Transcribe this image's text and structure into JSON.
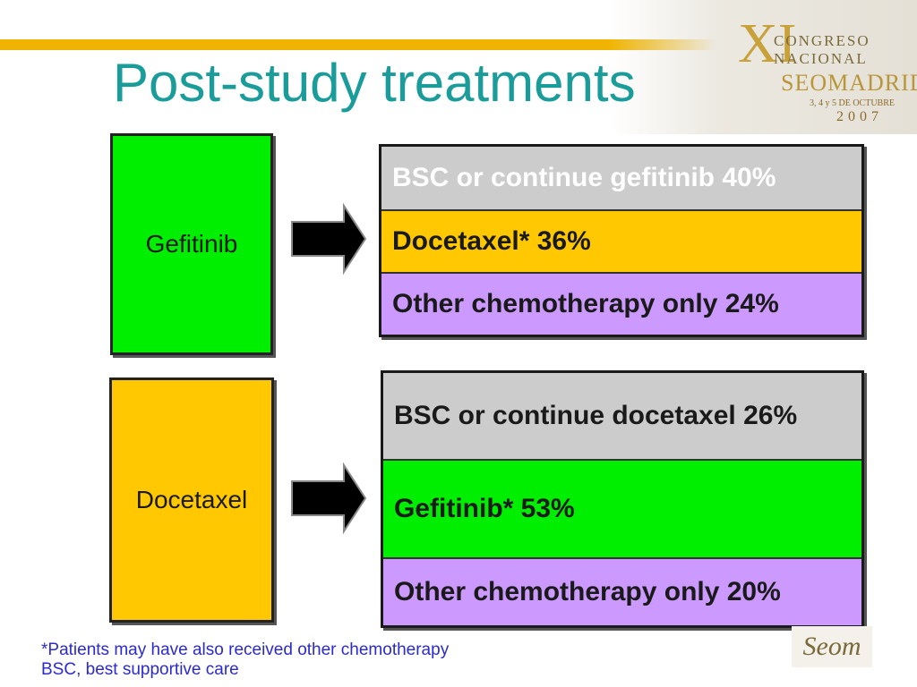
{
  "title": "Post-study treatments",
  "logo": {
    "numeral": "XI",
    "line1": "CONGRESO",
    "line2": "NACIONAL",
    "line3": "SEOMADRID",
    "dates": "3, 4 y 5 DE OCTUBRE",
    "year": "2007",
    "footer_logo": "Seom"
  },
  "colors": {
    "title": "#1a9c9a",
    "accent_bar": "#f0b400",
    "gefitinib_green": "#00ee00",
    "docetaxel_gold": "#ffc800",
    "bsc_grey": "#cccccc",
    "other_chemo_violet": "#cc99ff",
    "footnote_blue": "#2a2ad0"
  },
  "arms": [
    {
      "label": "Gefitinib",
      "outcomes": [
        {
          "text": "BSC or continue gefitinib 40%"
        },
        {
          "text": "Docetaxel* 36%"
        },
        {
          "text": "Other chemotherapy only 24%"
        }
      ]
    },
    {
      "label": "Docetaxel",
      "outcomes": [
        {
          "text": "BSC or continue docetaxel 26%"
        },
        {
          "text": "Gefitinib* 53%"
        },
        {
          "text": "Other chemotherapy only 20%"
        }
      ]
    }
  ],
  "footnotes": [
    "*Patients may have also received other chemotherapy",
    "BSC, best supportive care"
  ]
}
